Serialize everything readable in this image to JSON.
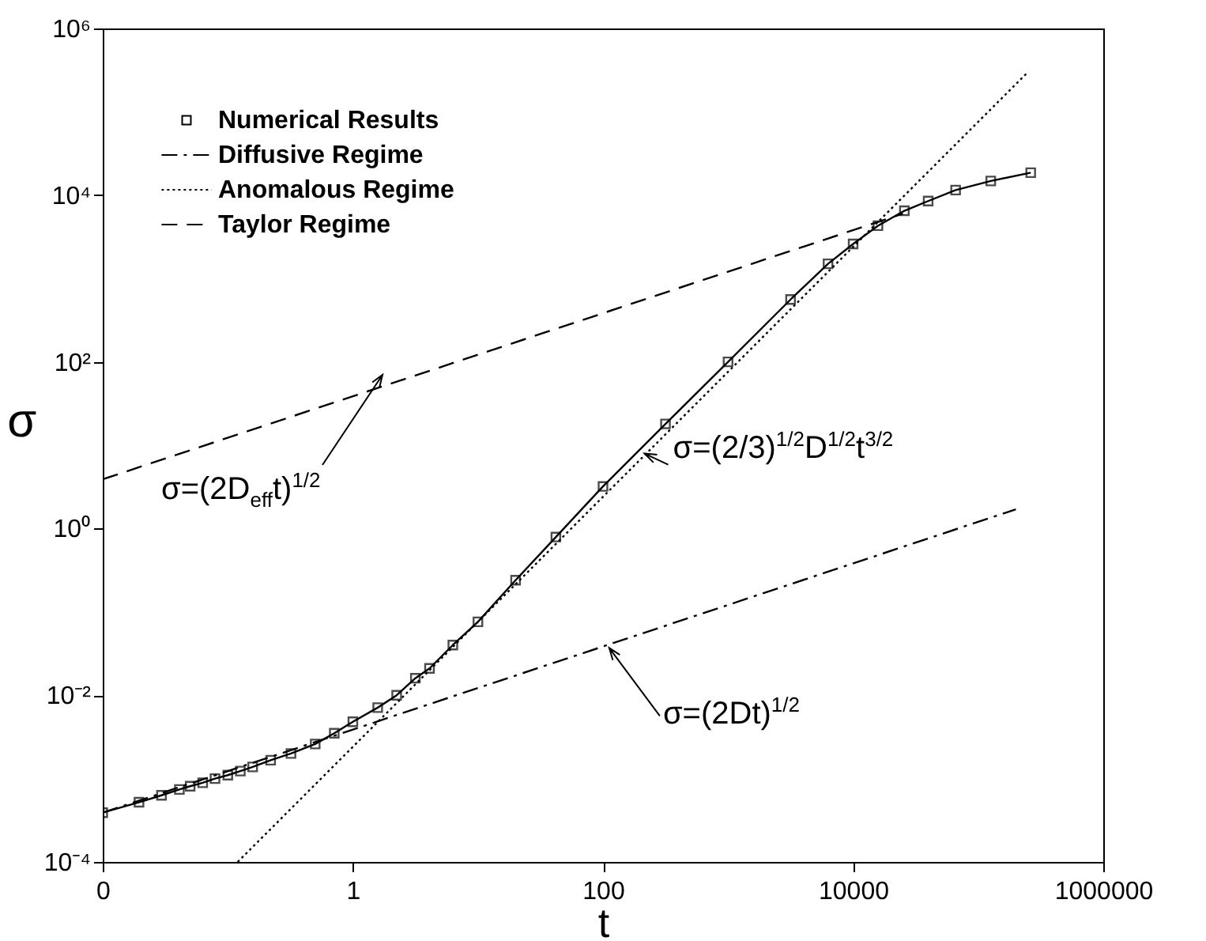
{
  "chart_data": {
    "type": "line",
    "log": "xy",
    "legend": "top left",
    "grid": false,
    "xlabel": "t",
    "ylabel": "σ",
    "xlim": [
      0.01,
      1000000
    ],
    "ylim": [
      0.0001,
      1000000
    ],
    "xticks": [
      {
        "value": 0.01,
        "label": "0"
      },
      1,
      100,
      10000,
      1000000
    ],
    "yticks": [
      {
        "value": 0.0001,
        "label": "10⁻⁴"
      },
      {
        "value": 0.01,
        "label": "10⁻²"
      },
      {
        "value": 1,
        "label": "10⁰"
      },
      {
        "value": 100,
        "label": "10²"
      },
      {
        "value": 10000,
        "label": "10⁴"
      },
      {
        "value": 1000000,
        "label": "10⁶"
      }
    ],
    "series": [
      {
        "name": "Numerical Results",
        "marker": "square",
        "line_style": "solid",
        "color": "#000000",
        "x": [
          0.01,
          0.0195,
          0.0295,
          0.041,
          0.05,
          0.063,
          0.079,
          0.1,
          0.126,
          0.158,
          0.22,
          0.32,
          0.5,
          0.71,
          1,
          1.58,
          2.24,
          3.16,
          4.1,
          6.3,
          10,
          20,
          42,
          100,
          316,
          1000,
          3160,
          6300,
          10000,
          15800,
          25700,
          39800,
          66000,
          126000,
          263000
        ],
        "values": [
          0.00039,
          0.00052,
          0.00063,
          0.00074,
          0.00081,
          0.00089,
          0.001,
          0.0011,
          0.00123,
          0.00138,
          0.00166,
          0.002,
          0.0026,
          0.0035,
          0.0048,
          0.0071,
          0.01,
          0.016,
          0.021,
          0.04,
          0.076,
          0.24,
          0.79,
          3.2,
          18,
          100,
          560,
          1500,
          2600,
          4300,
          6500,
          8500,
          11500,
          14800,
          18600
        ]
      },
      {
        "name": "Diffusive Regime",
        "line_style": "dashdot",
        "color": "#000000",
        "x": [
          0.01,
          200000
        ],
        "values": [
          0.00039,
          1.7
        ]
      },
      {
        "name": "Anomalous Regime",
        "line_style": "dotted",
        "color": "#000000",
        "x": [
          0.12,
          250000
        ],
        "values": [
          0.0001,
          300000
        ]
      },
      {
        "name": "Taylor Regime",
        "line_style": "dashed",
        "color": "#000000",
        "x": [
          0.01,
          25000
        ],
        "values": [
          3.9,
          6000
        ]
      }
    ],
    "annotations": [
      "σ=(2D$_{eff}$t)$^{1/2}$",
      {
        "text": "σ=(2/3)$^{1/2}$D$^{1/2}$t$^{3/2}$",
        "x": 110,
        "y": 4.7
      },
      {
        "text": "σ=(2Dt)$^{1/2}$",
        "x": 126,
        "y": 0.044
      }
    ]
  }
}
